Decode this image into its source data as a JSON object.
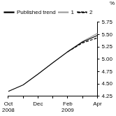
{
  "chart_data": {
    "type": "line",
    "y_label": "%",
    "categories": [
      "Oct 2008",
      null,
      "Dec",
      null,
      "Feb 2009",
      null,
      "Apr"
    ],
    "series": [
      {
        "name": "Published trend",
        "color": "#000000",
        "line_style": "solid",
        "values": [
          4.35,
          4.48,
          4.7,
          4.93,
          5.15,
          5.35,
          5.48
        ]
      },
      {
        "name": "1",
        "color": "#a0a0a0",
        "line_style": "solid",
        "values": [
          null,
          null,
          null,
          null,
          5.15,
          5.36,
          5.52
        ]
      },
      {
        "name": "2",
        "color": "#000000",
        "line_style": "dashed",
        "values": [
          null,
          null,
          null,
          null,
          5.15,
          5.33,
          5.43
        ]
      }
    ],
    "ylim": [
      4.25,
      5.75
    ],
    "yticks": [
      4.25,
      {
        "value": 4.5,
        "label": "4.50"
      },
      4.75,
      {
        "value": 5,
        "label": "5.00"
      },
      5.25,
      {
        "value": 5.5,
        "label": "5.50"
      },
      5.75
    ],
    "grid": false,
    "legend": "top-left"
  }
}
